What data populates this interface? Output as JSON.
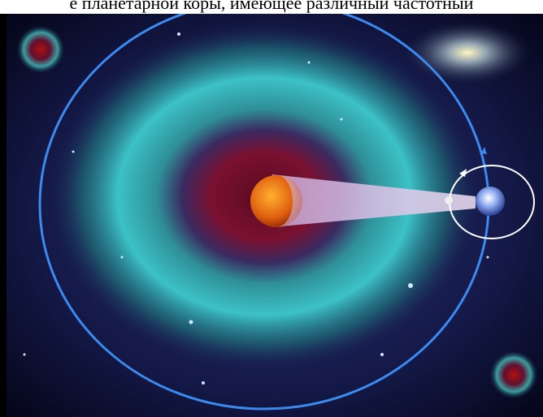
{
  "caption": "е планетарной коры, имеющее различный частотный"
}
